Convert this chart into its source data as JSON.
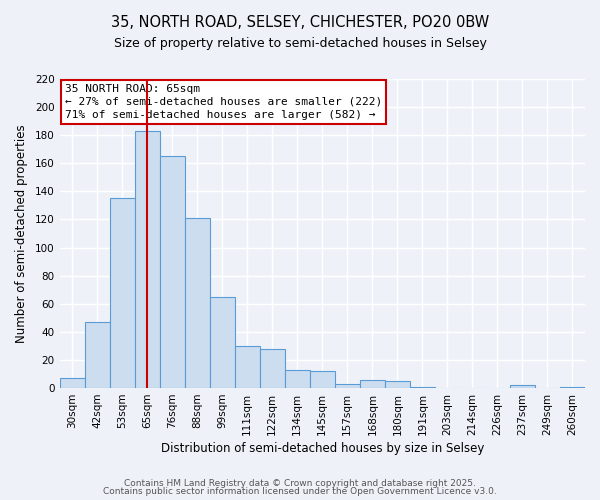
{
  "title": "35, NORTH ROAD, SELSEY, CHICHESTER, PO20 0BW",
  "subtitle": "Size of property relative to semi-detached houses in Selsey",
  "xlabel": "Distribution of semi-detached houses by size in Selsey",
  "ylabel": "Number of semi-detached properties",
  "categories": [
    "30sqm",
    "42sqm",
    "53sqm",
    "65sqm",
    "76sqm",
    "88sqm",
    "99sqm",
    "111sqm",
    "122sqm",
    "134sqm",
    "145sqm",
    "157sqm",
    "168sqm",
    "180sqm",
    "191sqm",
    "203sqm",
    "214sqm",
    "226sqm",
    "237sqm",
    "249sqm",
    "260sqm"
  ],
  "values": [
    7,
    47,
    135,
    183,
    165,
    121,
    65,
    30,
    28,
    13,
    12,
    3,
    6,
    5,
    1,
    0,
    0,
    0,
    2,
    0,
    1
  ],
  "bar_color": "#ccddf0",
  "bar_edge_color": "#5b9bd5",
  "vline_x_index": 3,
  "vline_color": "#cc0000",
  "annotation_title": "35 NORTH ROAD: 65sqm",
  "annotation_line1": "← 27% of semi-detached houses are smaller (222)",
  "annotation_line2": "71% of semi-detached houses are larger (582) →",
  "annotation_box_edge_color": "#cc0000",
  "ylim": [
    0,
    220
  ],
  "yticks": [
    0,
    20,
    40,
    60,
    80,
    100,
    120,
    140,
    160,
    180,
    200,
    220
  ],
  "footer1": "Contains HM Land Registry data © Crown copyright and database right 2025.",
  "footer2": "Contains public sector information licensed under the Open Government Licence v3.0.",
  "bg_color": "#eef2f8",
  "grid_color": "#ffffff",
  "title_fontsize": 10.5,
  "subtitle_fontsize": 9,
  "axis_label_fontsize": 8.5,
  "tick_fontsize": 7.5,
  "annotation_fontsize": 8,
  "footer_fontsize": 6.5
}
